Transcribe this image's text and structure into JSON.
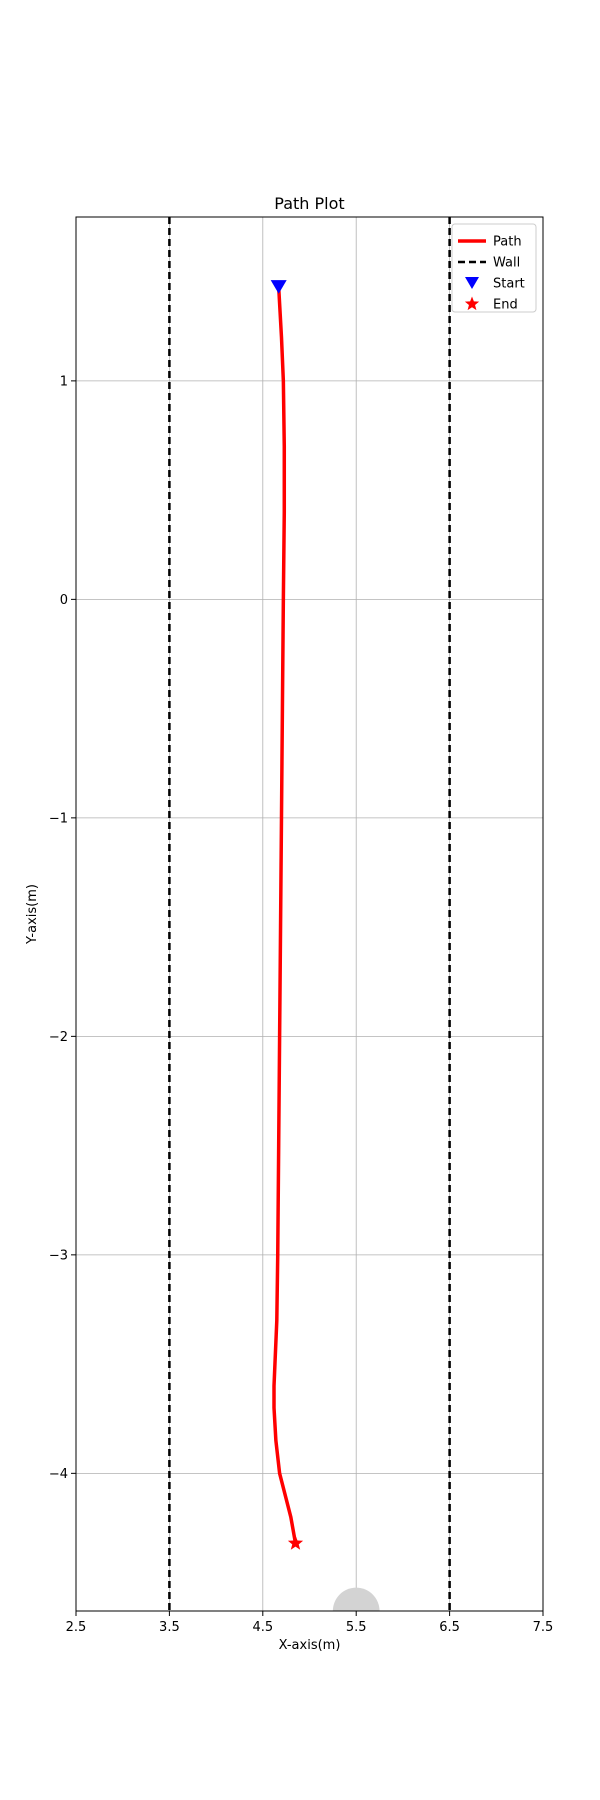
{
  "chart_data": {
    "type": "line",
    "title": "Path Plot",
    "xlabel": "X-axis(m)",
    "ylabel": "Y-axis(m)",
    "xlim": [
      2.5,
      7.5
    ],
    "ylim": [
      -4.63,
      1.75
    ],
    "x_ticks": [
      2.5,
      3.5,
      4.5,
      5.5,
      6.5,
      7.5
    ],
    "x_tick_labels": [
      "2.5",
      "3.5",
      "4.5",
      "5.5",
      "6.5",
      "7.5"
    ],
    "y_ticks": [
      -4,
      -3,
      -2,
      -1,
      0,
      1
    ],
    "y_tick_labels": [
      "−4",
      "−3",
      "−2",
      "−1",
      "0",
      "1"
    ],
    "grid": true,
    "legend_position": "top-right",
    "series": [
      {
        "name": "Path",
        "kind": "line",
        "color": "#ff0000",
        "x": [
          4.67,
          4.7,
          4.72,
          4.73,
          4.73,
          4.72,
          4.71,
          4.7,
          4.69,
          4.68,
          4.67,
          4.66,
          4.65,
          4.64,
          4.63,
          4.62,
          4.62,
          4.64,
          4.68,
          4.74,
          4.8,
          4.85
        ],
        "y": [
          1.43,
          1.2,
          1.0,
          0.7,
          0.4,
          0.0,
          -0.5,
          -1.0,
          -1.5,
          -2.0,
          -2.5,
          -3.0,
          -3.3,
          -3.4,
          -3.5,
          -3.6,
          -3.7,
          -3.85,
          -4.0,
          -4.1,
          -4.2,
          -4.32
        ]
      },
      {
        "name": "Wall",
        "kind": "vline",
        "color": "#000000",
        "dashed": true,
        "x_values": [
          3.5,
          6.5
        ]
      },
      {
        "name": "Start",
        "kind": "marker",
        "marker": "triangle-down",
        "color": "#0000ff",
        "x": [
          4.67
        ],
        "y": [
          1.43
        ]
      },
      {
        "name": "End",
        "kind": "marker",
        "marker": "star",
        "color": "#ff0000",
        "x": [
          4.85
        ],
        "y": [
          -4.32
        ]
      }
    ],
    "background_shape": {
      "kind": "semicircle",
      "color": "#d3d3d3",
      "center": [
        5.5,
        -4.63
      ],
      "radius": 0.25
    }
  }
}
